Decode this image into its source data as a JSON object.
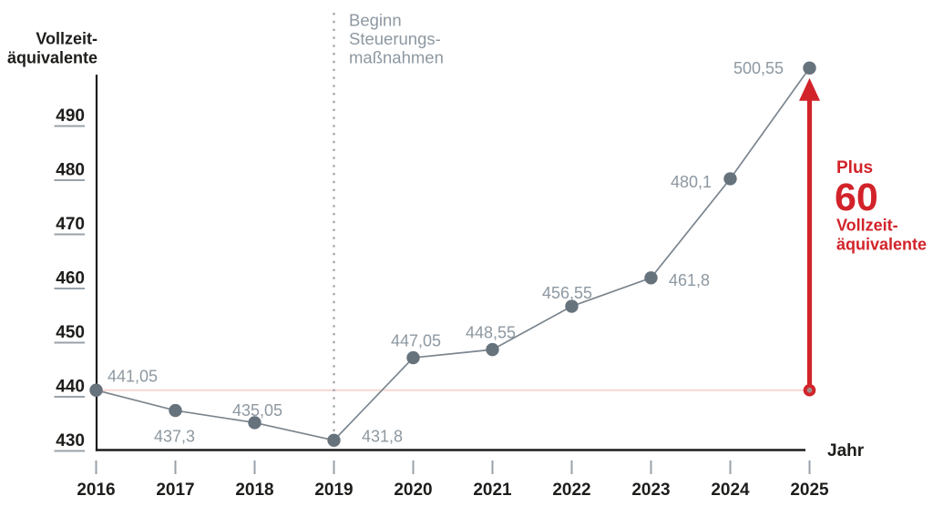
{
  "y_axis_title": {
    "line1": "Vollzeit-",
    "line2": "äquivalente"
  },
  "x_axis_title": "Jahr",
  "annotation": {
    "line1": "Beginn",
    "line2": "Steuerungs-",
    "line3": "maßnahmen"
  },
  "highlight": {
    "prefix": "Plus",
    "value": "60",
    "unit_line1": "Vollzeit-",
    "unit_line2": "äquivalente"
  },
  "chart_data": {
    "type": "line",
    "categories": [
      "2016",
      "2017",
      "2018",
      "2019",
      "2020",
      "2021",
      "2022",
      "2023",
      "2024",
      "2025"
    ],
    "series": [
      {
        "name": "Vollzeitäquivalente",
        "values": [
          441.05,
          437.3,
          435.05,
          431.8,
          447.05,
          448.55,
          456.55,
          461.8,
          480.1,
          500.55
        ]
      }
    ],
    "point_labels": [
      "441,05",
      "437,3",
      "435,05",
      "431,8",
      "447,05",
      "448,55",
      "456,55",
      "461,8",
      "480,1",
      "500,55"
    ],
    "ylabel": "Vollzeitäquivalente",
    "xlabel": "Jahr",
    "yticks": [
      430,
      440,
      450,
      460,
      470,
      480,
      490
    ],
    "ylim": [
      427,
      505
    ],
    "grid": false,
    "legend": false,
    "annotations": {
      "vertical_line_at": "2019",
      "vertical_line_text": "Beginn Steuerungsmaßnahmen",
      "reference_line_value": 441.05,
      "increase_arrow": {
        "at": "2025",
        "from_value": 441.05,
        "to_value": 500.55,
        "text": "Plus 60 Vollzeitäquivalente"
      }
    }
  },
  "colors": {
    "text_black": "#1d1d1b",
    "label_gray": "#8d98a1",
    "dot_gray": "#66727c",
    "line_gray": "#7b858e",
    "tick_gray": "#98a2aa",
    "reference_pink": "#f9d7d2",
    "accent_red": "#d2232a",
    "arrow_base_center": "#a28b86"
  }
}
